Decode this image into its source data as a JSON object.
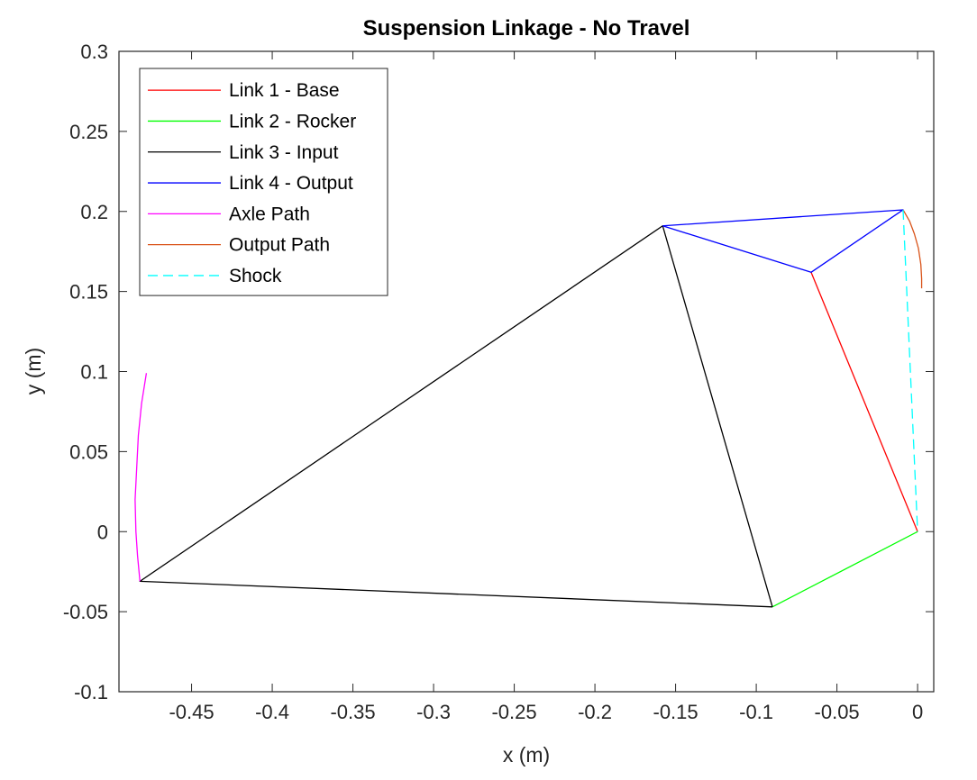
{
  "chart_data": {
    "type": "line",
    "title": "Suspension Linkage - No Travel",
    "xlabel": "x (m)",
    "ylabel": "y (m)",
    "xlim": [
      -0.495,
      0.01
    ],
    "ylim": [
      -0.1,
      0.3
    ],
    "xticks": [
      "-0.45",
      "-0.4",
      "-0.35",
      "-0.3",
      "-0.25",
      "-0.2",
      "-0.15",
      "-0.1",
      "-0.05",
      "0"
    ],
    "yticks": [
      "-0.1",
      "-0.05",
      "0",
      "0.05",
      "0.1",
      "0.15",
      "0.2",
      "0.25",
      "0.3"
    ],
    "grid": false,
    "legend_position": "top-left",
    "series": [
      {
        "name": "Link 1 - Base",
        "color": "#ff0000",
        "dash": "solid",
        "segments": [
          [
            [
              0,
              0
            ],
            [
              -0.066,
              0.162
            ]
          ]
        ]
      },
      {
        "name": "Link 2 - Rocker",
        "color": "#00ff00",
        "dash": "solid",
        "segments": [
          [
            [
              0,
              0
            ],
            [
              -0.09,
              -0.047
            ]
          ]
        ]
      },
      {
        "name": "Link 3 - Input",
        "color": "#000000",
        "dash": "solid",
        "segments": [
          [
            [
              -0.09,
              -0.047
            ],
            [
              -0.158,
              0.191
            ],
            [
              -0.482,
              -0.031
            ],
            [
              -0.09,
              -0.047
            ]
          ]
        ]
      },
      {
        "name": "Link 4 - Output",
        "color": "#0000ff",
        "dash": "solid",
        "segments": [
          [
            [
              -0.158,
              0.191
            ],
            [
              -0.066,
              0.162
            ],
            [
              -0.009,
              0.201
            ],
            [
              -0.158,
              0.191
            ]
          ]
        ]
      },
      {
        "name": "Axle Path",
        "color": "#ff00ff",
        "dash": "solid",
        "segments": [
          [
            [
              -0.478,
              0.099
            ],
            [
              -0.481,
              0.08
            ],
            [
              -0.483,
              0.06
            ],
            [
              -0.484,
              0.04
            ],
            [
              -0.485,
              0.02
            ],
            [
              -0.4845,
              0.0
            ],
            [
              -0.4835,
              -0.015
            ],
            [
              -0.482,
              -0.031
            ]
          ]
        ]
      },
      {
        "name": "Output Path",
        "color": "#d95319",
        "dash": "solid",
        "segments": [
          [
            [
              -0.009,
              0.201
            ],
            [
              -0.005,
              0.194
            ],
            [
              -0.002,
              0.186
            ],
            [
              0.0005,
              0.177
            ],
            [
              0.002,
              0.167
            ],
            [
              0.0025,
              0.158
            ],
            [
              0.0025,
              0.152
            ]
          ]
        ]
      },
      {
        "name": "Shock",
        "color": "#00ffff",
        "dash": "dashed",
        "segments": [
          [
            [
              -0.009,
              0.201
            ],
            [
              0,
              0
            ]
          ]
        ]
      }
    ]
  }
}
